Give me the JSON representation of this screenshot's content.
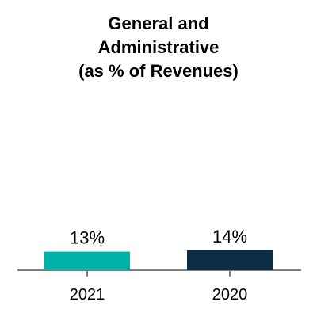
{
  "chart_data": {
    "type": "bar",
    "title_lines": [
      "General and",
      "Administrative",
      "(as % of Revenues)"
    ],
    "categories": [
      "2021",
      "2020"
    ],
    "values": [
      13,
      14
    ],
    "value_labels": [
      "13%",
      "14%"
    ],
    "colors": [
      "#00b2a9",
      "#0b2d45"
    ],
    "axis_color": "#7f7f7f",
    "ylim": [
      0,
      100
    ],
    "grid": false,
    "legend": "none"
  }
}
